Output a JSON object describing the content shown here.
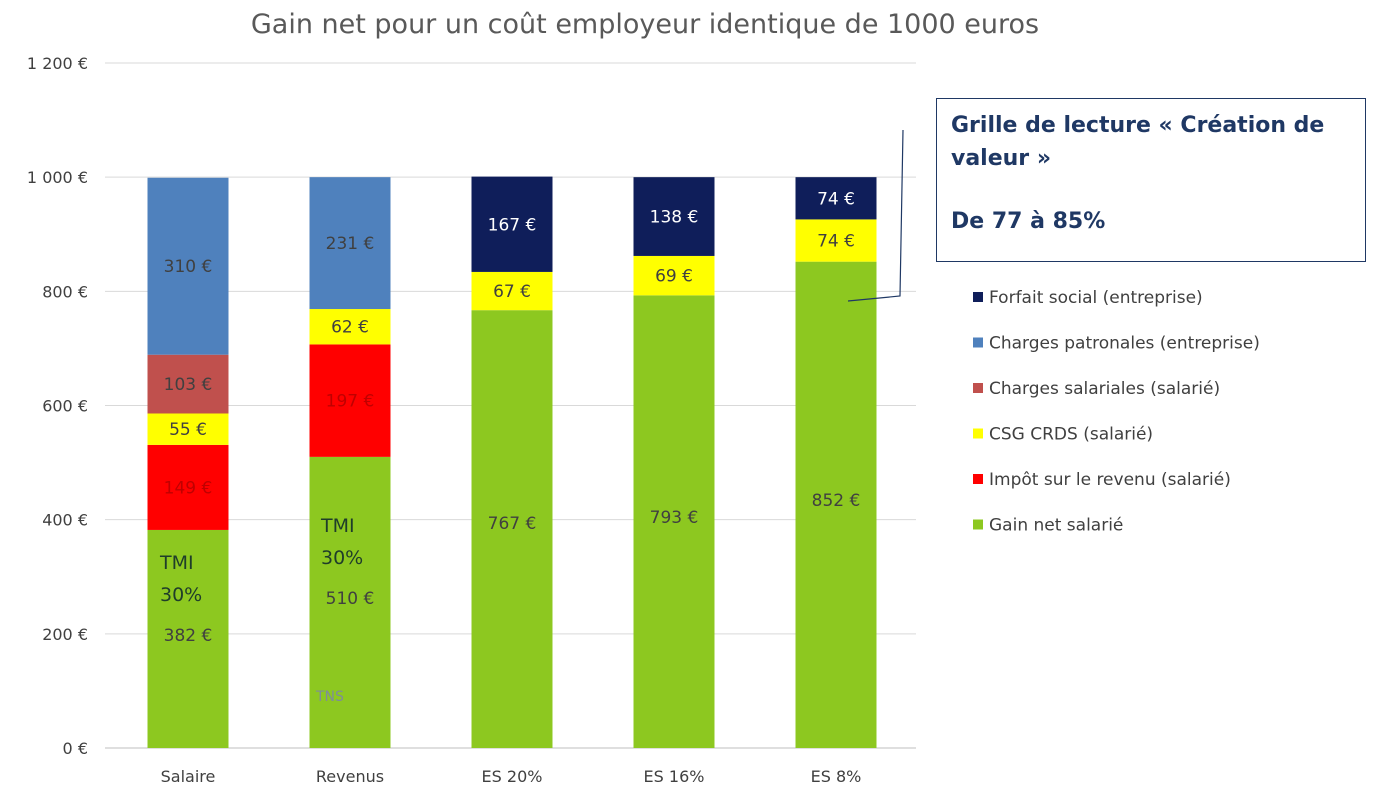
{
  "chart_data": {
    "type": "bar",
    "stacked": true,
    "title": "Gain net pour un coût employeur identique de 1000 euros",
    "xlabel": "",
    "ylabel": "",
    "ylim": [
      0,
      1200
    ],
    "yticks": [
      0,
      200,
      400,
      600,
      800,
      1000,
      1200
    ],
    "ytick_labels": [
      "0 €",
      "200 €",
      "400 €",
      "600 €",
      "800 €",
      "1 000 €",
      "1 200 €"
    ],
    "grid": true,
    "legend_position": "right",
    "categories": [
      "Salaire",
      "Revenus",
      "ES 20%",
      "ES 16%",
      "ES 8%"
    ],
    "series": [
      {
        "name": "Gain net salarié",
        "color": "#8dc820",
        "label_color": "#404040",
        "values": [
          382,
          510,
          767,
          793,
          852
        ],
        "labels": [
          "382 €",
          "510 €",
          "767 €",
          "793 €",
          "852 €"
        ]
      },
      {
        "name": "Impôt sur le revenu (salarié)",
        "color": "#ff0000",
        "label_color": "#c00000",
        "values": [
          149,
          197,
          0,
          0,
          0
        ],
        "labels": [
          "149 €",
          "197 €",
          "",
          "",
          ""
        ]
      },
      {
        "name": "CSG CRDS (salarié)",
        "color": "#ffff00",
        "label_color": "#404040",
        "values": [
          55,
          62,
          67,
          69,
          74
        ],
        "labels": [
          "55 €",
          "62 €",
          "67 €",
          "69 €",
          "74 €"
        ]
      },
      {
        "name": "Charges salariales (salarié)",
        "color": "#c0504d",
        "label_color": "#404040",
        "values": [
          103,
          0,
          0,
          0,
          0
        ],
        "labels": [
          "103 €",
          "",
          "",
          "",
          ""
        ]
      },
      {
        "name": "Charges patronales (entreprise)",
        "color": "#4f81bd",
        "label_color": "#404040",
        "values": [
          310,
          231,
          0,
          0,
          0
        ],
        "labels": [
          "310 €",
          "231 €",
          "",
          "",
          ""
        ]
      },
      {
        "name": "Forfait social (entreprise)",
        "color": "#0f1e5a",
        "label_color": "#ffffff",
        "values": [
          0,
          0,
          167,
          138,
          74
        ],
        "labels": [
          "",
          "",
          "167 €",
          "138 €",
          "74 €"
        ]
      }
    ],
    "legend_order": [
      "Forfait social (entreprise)",
      "Charges patronales (entreprise)",
      "Charges salariales (salarié)",
      "CSG CRDS (salarié)",
      "Impôt sur le revenu (salarié)",
      "Gain net salarié"
    ],
    "annotations": {
      "salaire_tmi": [
        "TMI",
        "30%"
      ],
      "revenus_tmi": [
        "TMI",
        "30%"
      ],
      "revenus_tns": "TNS"
    }
  },
  "callout": {
    "line1": "Grille de lecture « Création de",
    "line2": "valeur »",
    "line3": "De 77 à  85%"
  }
}
